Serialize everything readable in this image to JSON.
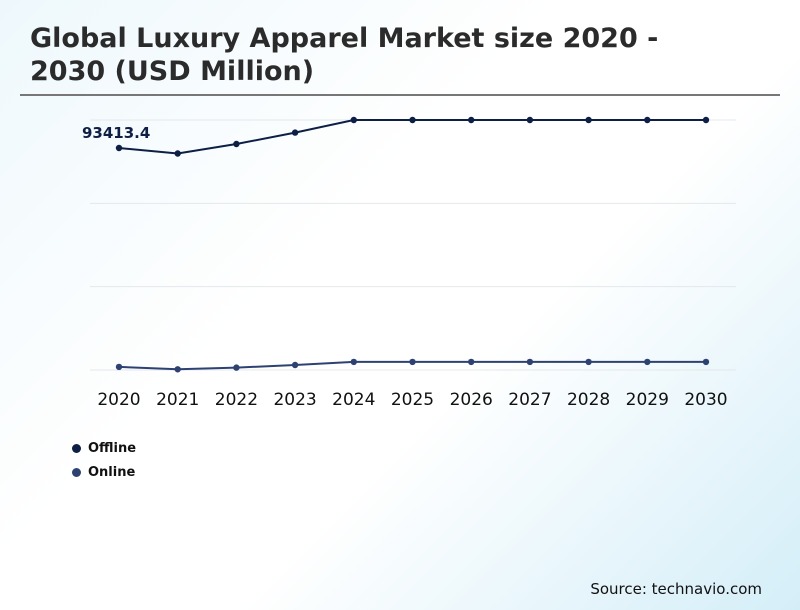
{
  "title": "Global Luxury Apparel Market size 2020 - 2030 (USD Million)",
  "source": "Source: technavio.com",
  "chart_data": {
    "type": "line",
    "title": "Global Luxury Apparel Market size 2020 - 2030 (USD Million)",
    "categories": [
      "2020",
      "2021",
      "2022",
      "2023",
      "2024",
      "2025",
      "2026",
      "2027",
      "2028",
      "2029",
      "2030"
    ],
    "series": [
      {
        "name": "Offline",
        "color": "#0d1f45",
        "values": [
          93413.4,
          91100,
          95100,
          99900,
          105200,
          105200,
          105200,
          105200,
          105200,
          105200,
          105200
        ]
      },
      {
        "name": "Online",
        "color": "#2e4272",
        "values": [
          1300,
          300,
          1000,
          2100,
          3400,
          3400,
          3400,
          3400,
          3400,
          3400,
          3400
        ]
      }
    ],
    "annotations": [
      {
        "series": "Offline",
        "category": "2020",
        "label": "93413.4"
      }
    ],
    "ylim": [
      0,
      105200
    ],
    "grid": true,
    "legend_position": "bottom-left"
  }
}
